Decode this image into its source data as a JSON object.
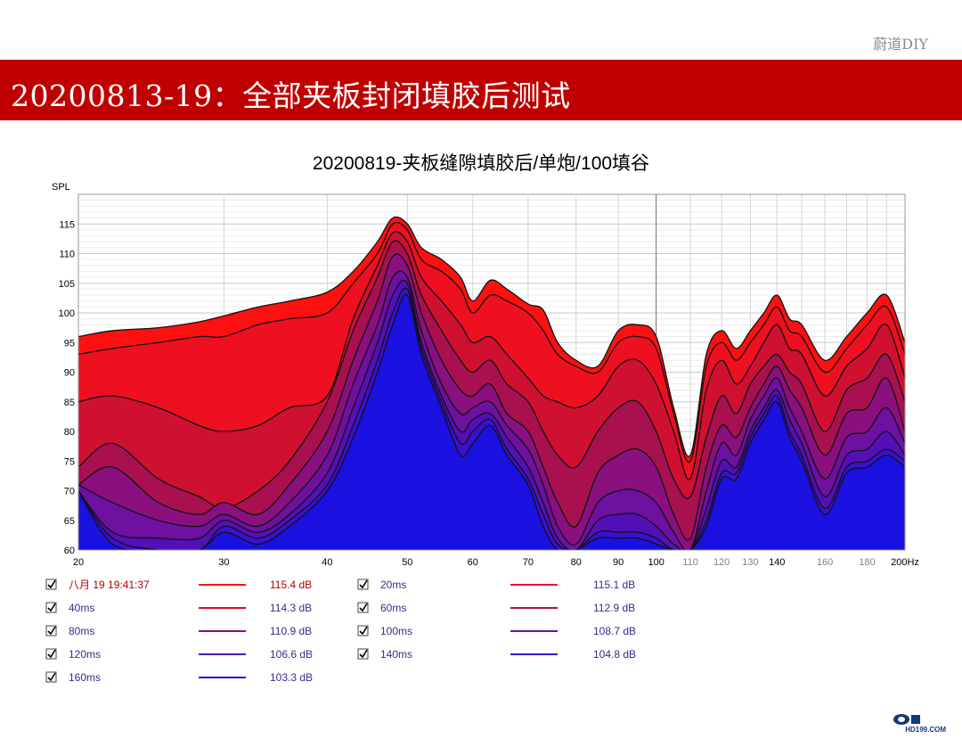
{
  "watermark": "蔚道DIY",
  "slide_title": "20200813-19：全部夹板封闭填胶后测试",
  "logo_text": "HD199.COM",
  "chart_data": {
    "type": "area",
    "title": "20200819-夹板缝隙填胶后/单炮/100填谷",
    "ylabel": "SPL",
    "xlabel": "",
    "x_scale": "log",
    "xlim": [
      20,
      200
    ],
    "ylim": [
      60,
      120
    ],
    "grid": true,
    "x_ticks": [
      {
        "v": 20,
        "label": "20",
        "bold": true
      },
      {
        "v": 30,
        "label": "30",
        "bold": true
      },
      {
        "v": 40,
        "label": "40",
        "bold": true
      },
      {
        "v": 50,
        "label": "50",
        "bold": true
      },
      {
        "v": 60,
        "label": "60",
        "bold": true
      },
      {
        "v": 70,
        "label": "70",
        "bold": true
      },
      {
        "v": 80,
        "label": "80",
        "bold": true
      },
      {
        "v": 90,
        "label": "90",
        "bold": true
      },
      {
        "v": 100,
        "label": "100",
        "bold": true
      },
      {
        "v": 110,
        "label": "110",
        "bold": false
      },
      {
        "v": 120,
        "label": "120",
        "bold": false
      },
      {
        "v": 130,
        "label": "130",
        "bold": false
      },
      {
        "v": 140,
        "label": "140",
        "bold": true
      },
      {
        "v": 160,
        "label": "160",
        "bold": false
      },
      {
        "v": 180,
        "label": "180",
        "bold": false
      },
      {
        "v": 200,
        "label": "200Hz",
        "bold": true
      }
    ],
    "y_ticks": [
      60,
      65,
      70,
      75,
      80,
      85,
      90,
      95,
      100,
      105,
      110,
      115
    ],
    "x": [
      20,
      22,
      25,
      28,
      30,
      33,
      36,
      40,
      43,
      46,
      48,
      50,
      52,
      55,
      58,
      60,
      63,
      66,
      70,
      73,
      76,
      80,
      85,
      90,
      95,
      100,
      105,
      110,
      115,
      120,
      125,
      130,
      135,
      140,
      145,
      150,
      160,
      170,
      180,
      190,
      200
    ],
    "series": [
      {
        "name": "八月 19 19:41:37",
        "color": "#ff1010",
        "peak": "115.4 dB",
        "values": [
          96,
          97,
          97.5,
          98.5,
          99.5,
          101,
          102,
          103.5,
          107,
          112,
          116,
          115,
          111,
          109,
          106,
          102,
          105.5,
          104,
          101.5,
          100.5,
          95,
          92,
          91,
          97,
          98,
          96,
          84,
          76,
          93,
          97,
          94,
          97,
          100,
          103,
          99,
          98,
          92,
          96,
          100,
          103,
          95
        ]
      },
      {
        "name": "20ms",
        "color": "#ee1020",
        "peak": "115.1 dB",
        "values": [
          93,
          94,
          95,
          96,
          96,
          98,
          99,
          100,
          105,
          110,
          115,
          114,
          109,
          107,
          104,
          100,
          103,
          102,
          100,
          97,
          93,
          91,
          90,
          95,
          96,
          94,
          83,
          75,
          91,
          95,
          92,
          95,
          98,
          101,
          97,
          96,
          90,
          94,
          98,
          101,
          93
        ]
      },
      {
        "name": "40ms",
        "color": "#d01030",
        "peak": "114.3 dB",
        "values": [
          85,
          86,
          84,
          81,
          80,
          81,
          84,
          86,
          99,
          108,
          113.5,
          112,
          106,
          102,
          98,
          95,
          96,
          93,
          89,
          86,
          85,
          84,
          86,
          91,
          92,
          88,
          80,
          72,
          87,
          92,
          88,
          91,
          95,
          98,
          94,
          93,
          86,
          91,
          94,
          98,
          89
        ]
      },
      {
        "name": "60ms",
        "color": "#a81050",
        "peak": "112.9 dB",
        "values": [
          74,
          78,
          72,
          69,
          67,
          70,
          75,
          85,
          97,
          106,
          112,
          110,
          103,
          97,
          92,
          90,
          92,
          88,
          85,
          80,
          76,
          74,
          80,
          84,
          85,
          80,
          72,
          69,
          79,
          86,
          83,
          88,
          91,
          93,
          90,
          88,
          80,
          87,
          89,
          93,
          85
        ]
      },
      {
        "name": "80ms",
        "color": "#8a1080",
        "peak": "110.9 dB",
        "values": [
          71,
          74,
          68,
          66,
          68,
          66,
          71,
          80,
          92,
          102,
          109.5,
          108,
          100,
          92,
          87,
          86,
          88,
          83,
          80,
          74,
          68,
          64,
          73,
          76,
          77,
          74,
          66,
          62,
          74,
          81,
          79,
          84,
          88,
          91,
          87,
          84,
          76,
          83,
          84,
          89,
          80
        ]
      },
      {
        "name": "100ms",
        "color": "#6e10a0",
        "peak": "108.7 dB",
        "values": [
          71,
          68,
          65,
          64,
          66,
          64,
          68,
          76,
          88,
          98,
          106,
          106,
          97,
          88,
          83,
          84,
          85,
          81,
          77,
          71,
          64,
          61,
          68,
          70,
          70,
          68,
          63,
          60,
          70,
          78,
          76,
          82,
          86,
          89,
          84,
          80,
          72,
          79,
          80,
          84,
          78
        ]
      },
      {
        "name": "120ms",
        "color": "#5310b8",
        "peak": "106.6 dB",
        "values": [
          70,
          63,
          62,
          62,
          65,
          63,
          66,
          73,
          84,
          95,
          103,
          105,
          95,
          86,
          80,
          82,
          83,
          79,
          74,
          68,
          62,
          60,
          65,
          66,
          66,
          64,
          61,
          60,
          67,
          75,
          74,
          80,
          84,
          87,
          82,
          78,
          69,
          76,
          77,
          80,
          76
        ]
      },
      {
        "name": "140ms",
        "color": "#3a10d0",
        "peak": "104.8 dB",
        "values": [
          70,
          62,
          60,
          60,
          64,
          62,
          65,
          71,
          81,
          92,
          100,
          104,
          94,
          85,
          78,
          80,
          82,
          77,
          72,
          66,
          61,
          60,
          63,
          63,
          63,
          62,
          60,
          60,
          65,
          73,
          73,
          79,
          83,
          86,
          80,
          76,
          67,
          74,
          75,
          77,
          75
        ]
      },
      {
        "name": "160ms",
        "color": "#1a10e0",
        "peak": "103.3 dB",
        "values": [
          70,
          61,
          60,
          60,
          63,
          61,
          64,
          70,
          79,
          90,
          98,
          103,
          93,
          84,
          76,
          78,
          81,
          76,
          71,
          64,
          60,
          60,
          62,
          62,
          62,
          61,
          60,
          60,
          64,
          72,
          72,
          78,
          82,
          85,
          79,
          75,
          66,
          73,
          74,
          76,
          74
        ]
      }
    ]
  }
}
